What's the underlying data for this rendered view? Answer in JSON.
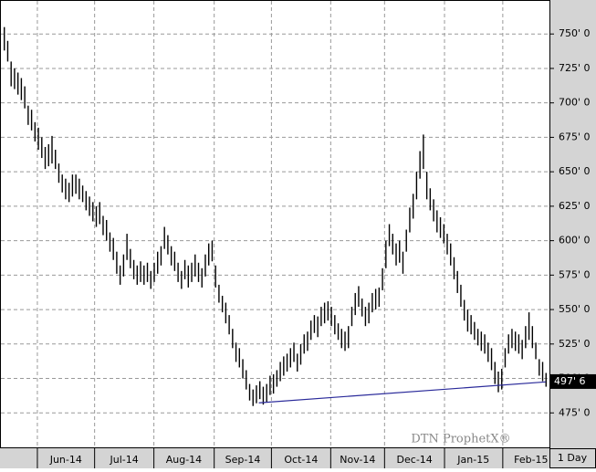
{
  "chart_data": {
    "type": "ohlc",
    "high": [
      755,
      745,
      730,
      725,
      722,
      718,
      712,
      698,
      695,
      686,
      682,
      675,
      668,
      670,
      676,
      666,
      656,
      648,
      645,
      642,
      648,
      648,
      645,
      640,
      636,
      632,
      628,
      625,
      628,
      618,
      615,
      606,
      602,
      592,
      582,
      590,
      605,
      594,
      586,
      582,
      585,
      582,
      584,
      578,
      584,
      592,
      596,
      610,
      604,
      596,
      592,
      584,
      578,
      586,
      582,
      584,
      590,
      584,
      580,
      590,
      598,
      600,
      582,
      568,
      560,
      555,
      546,
      536,
      526,
      522,
      514,
      506,
      496,
      492,
      495,
      498,
      494,
      496,
      502,
      503,
      506,
      512,
      516,
      518,
      522,
      526,
      518,
      525,
      532,
      534,
      542,
      546,
      545,
      552,
      555,
      556,
      552,
      546,
      540,
      536,
      534,
      538,
      552,
      562,
      567,
      558,
      552,
      555,
      562,
      565,
      566,
      580,
      600,
      612,
      605,
      598,
      600,
      592,
      608,
      624,
      634,
      650,
      665,
      677,
      650,
      638,
      630,
      622,
      617,
      612,
      605,
      598,
      588,
      578,
      568,
      557,
      550,
      546,
      541,
      536,
      534,
      532,
      526,
      522,
      512,
      505,
      507,
      522,
      532,
      536,
      534,
      532,
      528,
      538,
      548,
      538,
      526,
      514,
      512,
      504
    ],
    "low": [
      738,
      730,
      712,
      710,
      706,
      702,
      696,
      684,
      680,
      672,
      666,
      660,
      652,
      654,
      656,
      652,
      642,
      635,
      630,
      628,
      632,
      634,
      630,
      628,
      622,
      618,
      614,
      610,
      612,
      604,
      600,
      592,
      586,
      576,
      568,
      574,
      586,
      580,
      572,
      568,
      570,
      568,
      570,
      565,
      570,
      576,
      582,
      594,
      590,
      582,
      578,
      570,
      565,
      572,
      566,
      570,
      574,
      570,
      566,
      574,
      582,
      585,
      566,
      555,
      548,
      540,
      532,
      522,
      512,
      508,
      500,
      492,
      484,
      480,
      482,
      485,
      481,
      483,
      488,
      489,
      494,
      498,
      502,
      505,
      508,
      512,
      505,
      510,
      518,
      520,
      528,
      533,
      530,
      538,
      540,
      542,
      538,
      532,
      528,
      522,
      520,
      522,
      538,
      546,
      552,
      545,
      538,
      540,
      548,
      550,
      552,
      564,
      580,
      596,
      590,
      582,
      584,
      576,
      592,
      606,
      616,
      630,
      645,
      652,
      630,
      622,
      614,
      606,
      602,
      598,
      590,
      582,
      572,
      562,
      552,
      542,
      534,
      532,
      528,
      524,
      520,
      518,
      512,
      506,
      496,
      490,
      492,
      508,
      518,
      522,
      520,
      518,
      514,
      522,
      528,
      522,
      514,
      502,
      498,
      494
    ],
    "color": "#000000",
    "xlim": [
      -1,
      160
    ],
    "xgrid": [
      9.7,
      26.5,
      43.9,
      61.6,
      78.4,
      95.8,
      111.6,
      129.2,
      146.3
    ],
    "xticks": [
      {
        "value": 18.1,
        "label": "Jun-14"
      },
      {
        "value": 35.2,
        "label": "Jul-14"
      },
      {
        "value": 52.7,
        "label": "Aug-14"
      },
      {
        "value": 70,
        "label": "Sep-14"
      },
      {
        "value": 87.1,
        "label": "Oct-14"
      },
      {
        "value": 103.7,
        "label": "Nov-14"
      },
      {
        "value": 120.4,
        "label": "Dec-14"
      },
      {
        "value": 137.7,
        "label": "Jan-15"
      },
      {
        "value": 154.6,
        "label": "Feb-15"
      }
    ],
    "ylim": [
      450,
      774
    ],
    "yticks": [
      {
        "value": 475,
        "label": "475' 0"
      },
      {
        "value": 500,
        "label": "500' 0"
      },
      {
        "value": 525,
        "label": "525' 0"
      },
      {
        "value": 550,
        "label": "550' 0"
      },
      {
        "value": 575,
        "label": "575' 0"
      },
      {
        "value": 600,
        "label": "600' 0"
      },
      {
        "value": 625,
        "label": "625' 0"
      },
      {
        "value": 650,
        "label": "650' 0"
      },
      {
        "value": 675,
        "label": "675' 0"
      },
      {
        "value": 700,
        "label": "700' 0"
      },
      {
        "value": 725,
        "label": "725' 0"
      },
      {
        "value": 750,
        "label": "750' 0"
      }
    ],
    "last_price": {
      "value": 497.75,
      "label": "497' 6"
    },
    "trendline": {
      "x": [
        74.7,
        158.9
      ],
      "y": [
        482.3,
        497.5
      ],
      "color": "#2a2a9a"
    },
    "grid": true,
    "watermark": "DTN ProphetX®",
    "interval": "1 Day"
  }
}
